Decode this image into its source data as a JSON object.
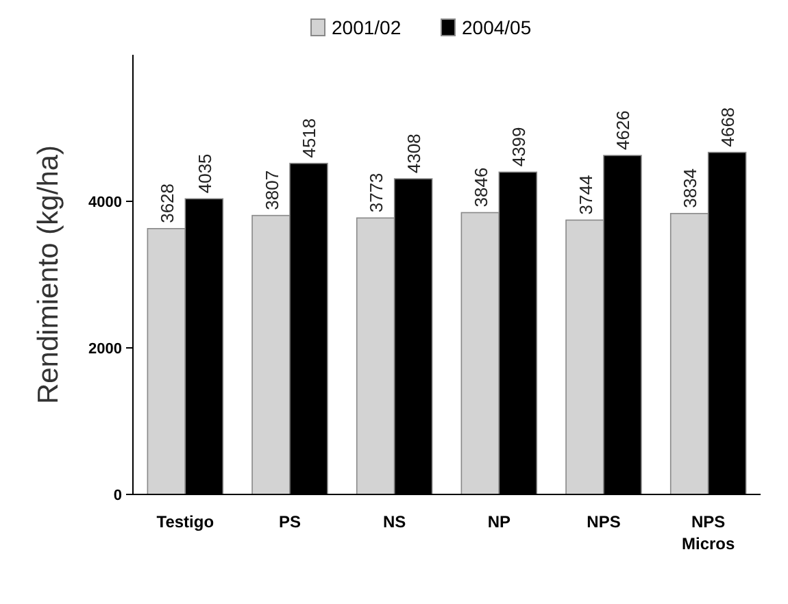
{
  "chart_data": {
    "type": "bar",
    "ylabel": "Rendimiento (kg/ha)",
    "categories": [
      "Testigo",
      "PS",
      "NS",
      "NP",
      "NPS",
      "NPS Micros"
    ],
    "series": [
      {
        "name": "2001/02",
        "color": "#d3d3d3",
        "values": [
          3628,
          3807,
          3773,
          3846,
          3744,
          3834
        ]
      },
      {
        "name": "2004/05",
        "color": "#000000",
        "values": [
          4035,
          4518,
          4308,
          4399,
          4626,
          4668
        ]
      }
    ],
    "ylim": [
      0,
      6000
    ],
    "yticks": [
      0,
      2000,
      4000
    ],
    "data_labels": true,
    "legend": "top",
    "grid": false
  }
}
